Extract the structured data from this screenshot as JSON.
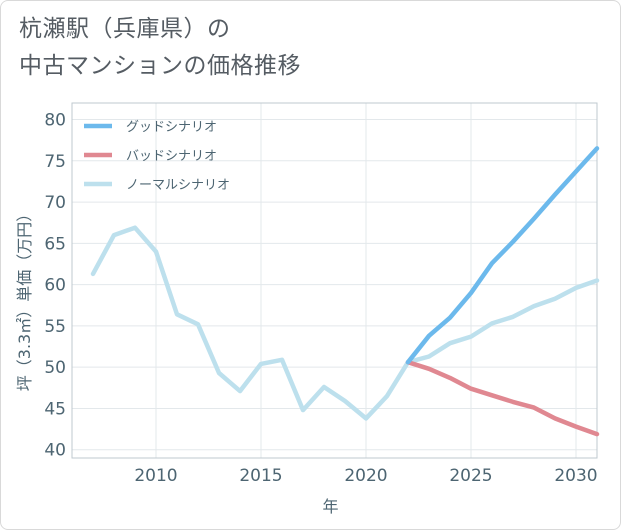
{
  "title": {
    "line1": "杭瀬駅（兵庫県）の",
    "line2": "中古マンションの価格推移"
  },
  "chart_data": {
    "type": "line",
    "xlabel": "年",
    "ylabel": "坪（3.3㎡）単価（万円）",
    "xlim": [
      2006,
      2031
    ],
    "ylim": [
      39,
      82
    ],
    "x_ticks": [
      2010,
      2015,
      2020,
      2025,
      2030
    ],
    "y_ticks": [
      40,
      45,
      50,
      55,
      60,
      65,
      70,
      75,
      80
    ],
    "grid": true,
    "legend_position": "top-left",
    "series": [
      {
        "name": "グッドシナリオ",
        "color": "#6cb9ec",
        "x": [
          2022,
          2023,
          2024,
          2025,
          2026,
          2027,
          2028,
          2029,
          2030,
          2031
        ],
        "y": [
          50.6,
          53.8,
          56.0,
          59.0,
          62.6,
          65.2,
          68.0,
          70.9,
          73.7,
          76.5
        ]
      },
      {
        "name": "バッドシナリオ",
        "color": "#e08891",
        "x": [
          2022,
          2023,
          2024,
          2025,
          2026,
          2027,
          2028,
          2029,
          2030,
          2031
        ],
        "y": [
          50.6,
          49.8,
          48.7,
          47.4,
          46.6,
          45.8,
          45.1,
          43.8,
          42.8,
          41.9
        ]
      },
      {
        "name": "ノーマルシナリオ",
        "color": "#bde0ed",
        "x": [
          2007,
          2008,
          2009,
          2010,
          2011,
          2012,
          2013,
          2014,
          2015,
          2016,
          2017,
          2018,
          2019,
          2020,
          2021,
          2022,
          2023,
          2024,
          2025,
          2026,
          2027,
          2028,
          2029,
          2030,
          2031
        ],
        "y": [
          61.3,
          66.0,
          66.9,
          64.0,
          56.4,
          55.2,
          49.3,
          47.1,
          50.4,
          50.9,
          44.8,
          47.6,
          45.9,
          43.8,
          46.5,
          50.6,
          51.3,
          52.9,
          53.7,
          55.3,
          56.1,
          57.4,
          58.3,
          59.6,
          60.5
        ]
      }
    ]
  }
}
